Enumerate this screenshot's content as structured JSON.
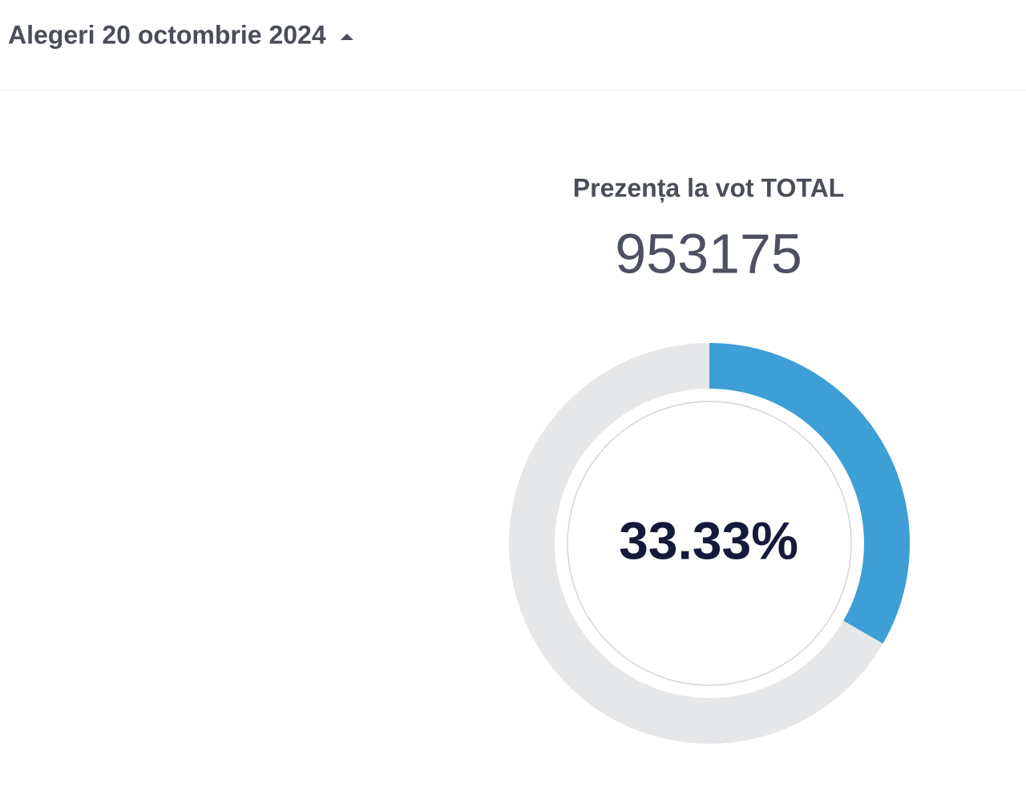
{
  "header": {
    "title": "Alegeri 20 octombrie 2024"
  },
  "turnout": {
    "label": "Prezența la vot TOTAL",
    "total": 953175,
    "percent": 33.33,
    "percent_label": "33.33%",
    "scale": [
      0,
      100
    ],
    "color": "#3d9fd6",
    "track_color": "#e6e7e9"
  }
}
